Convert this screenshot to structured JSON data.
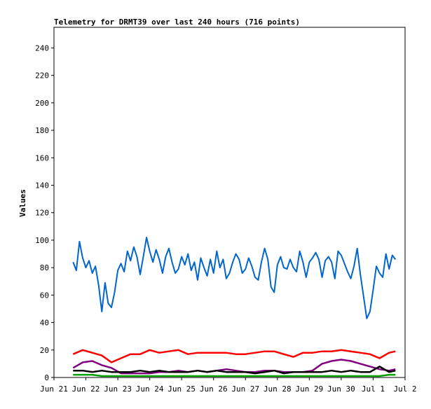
{
  "chart_data": {
    "type": "line",
    "title": "Telemetry for DRMT39 over last 240 hours (716 points)",
    "xlabel": "",
    "ylabel": "Values",
    "x_ticks": [
      "Jun 21",
      "Jun 22",
      "Jun 23",
      "Jun 24",
      "Jun 25",
      "Jun 26",
      "Jun 27",
      "Jun 28",
      "Jun 29",
      "Jun 30",
      "Jul 1",
      "Jul 2"
    ],
    "xlim": [
      "Jun 21",
      "Jul 2"
    ],
    "y_ticks": [
      0,
      20,
      40,
      60,
      80,
      100,
      120,
      140,
      160,
      180,
      200,
      220,
      240
    ],
    "ylim": [
      0,
      255
    ],
    "grid": false,
    "legend": "none",
    "series": [
      {
        "color": "#0066cc",
        "x": [
          0.6,
          0.7,
          0.8,
          0.9,
          1.0,
          1.1,
          1.2,
          1.3,
          1.4,
          1.5,
          1.6,
          1.7,
          1.8,
          1.9,
          2.0,
          2.1,
          2.2,
          2.3,
          2.4,
          2.5,
          2.6,
          2.7,
          2.8,
          2.9,
          3.0,
          3.1,
          3.2,
          3.3,
          3.4,
          3.5,
          3.6,
          3.7,
          3.8,
          3.9,
          4.0,
          4.1,
          4.2,
          4.3,
          4.4,
          4.5,
          4.6,
          4.7,
          4.8,
          4.9,
          5.0,
          5.1,
          5.2,
          5.3,
          5.4,
          5.5,
          5.6,
          5.7,
          5.8,
          5.9,
          6.0,
          6.1,
          6.2,
          6.3,
          6.4,
          6.5,
          6.6,
          6.7,
          6.8,
          6.9,
          7.0,
          7.1,
          7.2,
          7.3,
          7.4,
          7.5,
          7.6,
          7.7,
          7.8,
          7.9,
          8.0,
          8.1,
          8.2,
          8.3,
          8.4,
          8.5,
          8.6,
          8.7,
          8.8,
          8.9,
          9.0,
          9.1,
          9.2,
          9.3,
          9.4,
          9.5,
          9.6,
          9.7,
          9.8,
          9.9,
          10.0,
          10.1,
          10.2,
          10.3,
          10.4,
          10.5,
          10.6,
          10.7
        ],
        "values": [
          84,
          78,
          99,
          87,
          80,
          85,
          76,
          81,
          67,
          48,
          69,
          54,
          51,
          62,
          78,
          83,
          77,
          92,
          85,
          95,
          88,
          75,
          88,
          102,
          92,
          84,
          93,
          86,
          76,
          88,
          94,
          84,
          76,
          79,
          88,
          82,
          90,
          78,
          84,
          71,
          87,
          80,
          74,
          86,
          76,
          92,
          80,
          86,
          72,
          76,
          84,
          90,
          86,
          76,
          79,
          87,
          81,
          73,
          71,
          84,
          94,
          86,
          66,
          62,
          82,
          88,
          80,
          79,
          86,
          80,
          77,
          92,
          84,
          73,
          84,
          87,
          91,
          86,
          73,
          85,
          88,
          84,
          72,
          92,
          89,
          83,
          77,
          72,
          81,
          94,
          75,
          59,
          43,
          48,
          64,
          81,
          76,
          73,
          90,
          79,
          89,
          86
        ]
      },
      {
        "color": "#ff0000",
        "x": [
          0.6,
          0.9,
          1.2,
          1.5,
          1.8,
          2.1,
          2.4,
          2.7,
          3.0,
          3.3,
          3.6,
          3.9,
          4.2,
          4.5,
          4.8,
          5.1,
          5.4,
          5.7,
          6.0,
          6.3,
          6.6,
          6.9,
          7.2,
          7.5,
          7.8,
          8.1,
          8.4,
          8.7,
          9.0,
          9.3,
          9.6,
          9.9,
          10.2,
          10.5,
          10.7
        ],
        "values": [
          17,
          20,
          18,
          16,
          11,
          14,
          17,
          17,
          20,
          18,
          19,
          20,
          17,
          18,
          18,
          18,
          18,
          17,
          17,
          18,
          19,
          19,
          17,
          15,
          18,
          18,
          19,
          19,
          20,
          19,
          18,
          17,
          14,
          18,
          19
        ]
      },
      {
        "color": "#800080",
        "x": [
          0.6,
          0.9,
          1.2,
          1.5,
          1.8,
          2.1,
          2.4,
          2.7,
          3.0,
          3.3,
          3.6,
          3.9,
          4.2,
          4.5,
          4.8,
          5.1,
          5.4,
          5.7,
          6.0,
          6.3,
          6.6,
          6.9,
          7.2,
          7.5,
          7.8,
          8.1,
          8.4,
          8.7,
          9.0,
          9.3,
          9.6,
          9.9,
          10.2,
          10.5,
          10.7
        ],
        "values": [
          7,
          11,
          12,
          9,
          7,
          3,
          3,
          3,
          3,
          4,
          4,
          5,
          4,
          5,
          4,
          5,
          6,
          5,
          4,
          4,
          5,
          5,
          4,
          4,
          4,
          5,
          10,
          12,
          13,
          12,
          10,
          8,
          6,
          5,
          6
        ]
      },
      {
        "color": "#000000",
        "x": [
          0.6,
          0.9,
          1.2,
          1.5,
          1.8,
          2.1,
          2.4,
          2.7,
          3.0,
          3.3,
          3.6,
          3.9,
          4.2,
          4.5,
          4.8,
          5.1,
          5.4,
          5.7,
          6.0,
          6.3,
          6.6,
          6.9,
          7.2,
          7.5,
          7.8,
          8.1,
          8.4,
          8.7,
          9.0,
          9.3,
          9.6,
          9.9,
          10.2,
          10.5,
          10.7
        ],
        "values": [
          5,
          5,
          4,
          5,
          4,
          4,
          4,
          5,
          4,
          5,
          4,
          4,
          4,
          5,
          4,
          5,
          4,
          4,
          4,
          3,
          4,
          5,
          3,
          4,
          4,
          4,
          4,
          5,
          4,
          5,
          4,
          4,
          8,
          4,
          5
        ]
      },
      {
        "color": "#00a000",
        "x": [
          0.6,
          0.9,
          1.2,
          1.5,
          1.8,
          2.1,
          2.4,
          2.7,
          3.0,
          3.3,
          3.6,
          3.9,
          4.2,
          4.5,
          4.8,
          5.1,
          5.4,
          5.7,
          6.0,
          6.3,
          6.6,
          6.9,
          7.2,
          7.5,
          7.8,
          8.1,
          8.4,
          8.7,
          9.0,
          9.3,
          9.6,
          9.9,
          10.2,
          10.5,
          10.7
        ],
        "values": [
          2,
          2,
          2,
          1,
          1,
          1,
          1,
          1,
          1,
          1,
          1,
          1,
          1,
          1,
          1,
          1,
          1,
          1,
          1,
          1,
          1,
          1,
          1,
          1,
          1,
          1,
          1,
          1,
          1,
          1,
          1,
          1,
          1,
          2,
          2
        ]
      }
    ]
  }
}
